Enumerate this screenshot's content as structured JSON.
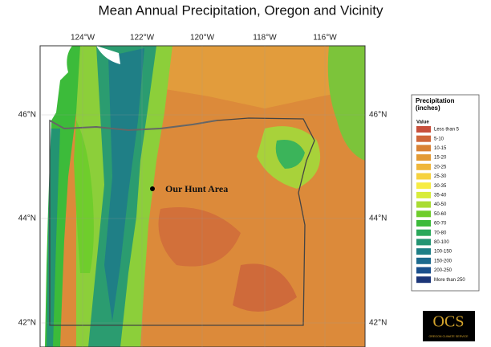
{
  "title": "Mean Annual Precipitation, Oregon and Vicinity",
  "longitude_labels": [
    "124°W",
    "122°W",
    "120°W",
    "118°W",
    "116°W"
  ],
  "latitude_labels": [
    "46°N",
    "44°N",
    "42°N"
  ],
  "annotation": "Our Hunt Area",
  "legend": {
    "title": "Precipitation (inches)",
    "subtitle": "Value",
    "items": [
      {
        "label": "Less than 5",
        "color": "#c8503c"
      },
      {
        "label": "5-10",
        "color": "#d0673a"
      },
      {
        "label": "10-15",
        "color": "#d98234"
      },
      {
        "label": "15-20",
        "color": "#e39a35"
      },
      {
        "label": "20-25",
        "color": "#efb63a"
      },
      {
        "label": "25-30",
        "color": "#f6d23e"
      },
      {
        "label": "30-35",
        "color": "#f7ec43"
      },
      {
        "label": "35-40",
        "color": "#d8ec3a"
      },
      {
        "label": "40-50",
        "color": "#a9dc33"
      },
      {
        "label": "50-60",
        "color": "#6fcd2c"
      },
      {
        "label": "60-70",
        "color": "#3cbb3a"
      },
      {
        "label": "70-80",
        "color": "#2aa85a"
      },
      {
        "label": "80-100",
        "color": "#239472"
      },
      {
        "label": "100-150",
        "color": "#1f7f86"
      },
      {
        "label": "150-200",
        "color": "#1d6a8e"
      },
      {
        "label": "200-250",
        "color": "#1a4f8c"
      },
      {
        "label": "More than 250",
        "color": "#1b3578"
      }
    ]
  },
  "logo": {
    "mark": "OCS",
    "caption": "OREGON CLIMATE SERVICE"
  }
}
